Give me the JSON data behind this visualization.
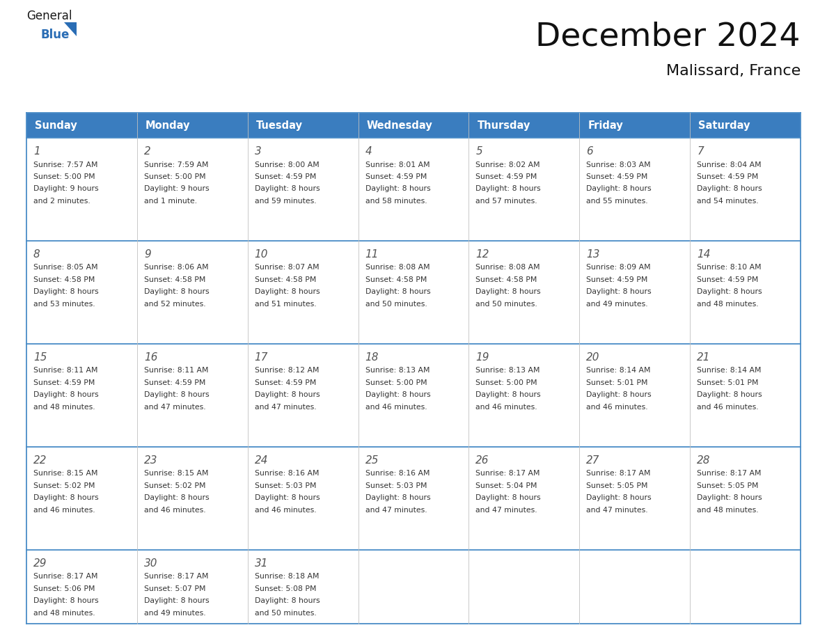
{
  "title": "December 2024",
  "subtitle": "Malissard, France",
  "header_bg_color": "#3a7dbf",
  "header_text_color": "#ffffff",
  "header_font_size": 10.5,
  "day_names": [
    "Sunday",
    "Monday",
    "Tuesday",
    "Wednesday",
    "Thursday",
    "Friday",
    "Saturday"
  ],
  "title_font_size": 34,
  "subtitle_font_size": 16,
  "grid_line_color": "#4a8cc7",
  "text_color": "#333333",
  "day_number_color": "#555555",
  "logo_general_color": "#1a1a1a",
  "logo_blue_color": "#2a6db5",
  "days_data": [
    {
      "day": 1,
      "col": 0,
      "row": 0,
      "sunrise": "7:57 AM",
      "sunset": "5:00 PM",
      "daylight_h": "9 hours",
      "daylight_m": "and 2 minutes."
    },
    {
      "day": 2,
      "col": 1,
      "row": 0,
      "sunrise": "7:59 AM",
      "sunset": "5:00 PM",
      "daylight_h": "9 hours",
      "daylight_m": "and 1 minute."
    },
    {
      "day": 3,
      "col": 2,
      "row": 0,
      "sunrise": "8:00 AM",
      "sunset": "4:59 PM",
      "daylight_h": "8 hours",
      "daylight_m": "and 59 minutes."
    },
    {
      "day": 4,
      "col": 3,
      "row": 0,
      "sunrise": "8:01 AM",
      "sunset": "4:59 PM",
      "daylight_h": "8 hours",
      "daylight_m": "and 58 minutes."
    },
    {
      "day": 5,
      "col": 4,
      "row": 0,
      "sunrise": "8:02 AM",
      "sunset": "4:59 PM",
      "daylight_h": "8 hours",
      "daylight_m": "and 57 minutes."
    },
    {
      "day": 6,
      "col": 5,
      "row": 0,
      "sunrise": "8:03 AM",
      "sunset": "4:59 PM",
      "daylight_h": "8 hours",
      "daylight_m": "and 55 minutes."
    },
    {
      "day": 7,
      "col": 6,
      "row": 0,
      "sunrise": "8:04 AM",
      "sunset": "4:59 PM",
      "daylight_h": "8 hours",
      "daylight_m": "and 54 minutes."
    },
    {
      "day": 8,
      "col": 0,
      "row": 1,
      "sunrise": "8:05 AM",
      "sunset": "4:58 PM",
      "daylight_h": "8 hours",
      "daylight_m": "and 53 minutes."
    },
    {
      "day": 9,
      "col": 1,
      "row": 1,
      "sunrise": "8:06 AM",
      "sunset": "4:58 PM",
      "daylight_h": "8 hours",
      "daylight_m": "and 52 minutes."
    },
    {
      "day": 10,
      "col": 2,
      "row": 1,
      "sunrise": "8:07 AM",
      "sunset": "4:58 PM",
      "daylight_h": "8 hours",
      "daylight_m": "and 51 minutes."
    },
    {
      "day": 11,
      "col": 3,
      "row": 1,
      "sunrise": "8:08 AM",
      "sunset": "4:58 PM",
      "daylight_h": "8 hours",
      "daylight_m": "and 50 minutes."
    },
    {
      "day": 12,
      "col": 4,
      "row": 1,
      "sunrise": "8:08 AM",
      "sunset": "4:58 PM",
      "daylight_h": "8 hours",
      "daylight_m": "and 50 minutes."
    },
    {
      "day": 13,
      "col": 5,
      "row": 1,
      "sunrise": "8:09 AM",
      "sunset": "4:59 PM",
      "daylight_h": "8 hours",
      "daylight_m": "and 49 minutes."
    },
    {
      "day": 14,
      "col": 6,
      "row": 1,
      "sunrise": "8:10 AM",
      "sunset": "4:59 PM",
      "daylight_h": "8 hours",
      "daylight_m": "and 48 minutes."
    },
    {
      "day": 15,
      "col": 0,
      "row": 2,
      "sunrise": "8:11 AM",
      "sunset": "4:59 PM",
      "daylight_h": "8 hours",
      "daylight_m": "and 48 minutes."
    },
    {
      "day": 16,
      "col": 1,
      "row": 2,
      "sunrise": "8:11 AM",
      "sunset": "4:59 PM",
      "daylight_h": "8 hours",
      "daylight_m": "and 47 minutes."
    },
    {
      "day": 17,
      "col": 2,
      "row": 2,
      "sunrise": "8:12 AM",
      "sunset": "4:59 PM",
      "daylight_h": "8 hours",
      "daylight_m": "and 47 minutes."
    },
    {
      "day": 18,
      "col": 3,
      "row": 2,
      "sunrise": "8:13 AM",
      "sunset": "5:00 PM",
      "daylight_h": "8 hours",
      "daylight_m": "and 46 minutes."
    },
    {
      "day": 19,
      "col": 4,
      "row": 2,
      "sunrise": "8:13 AM",
      "sunset": "5:00 PM",
      "daylight_h": "8 hours",
      "daylight_m": "and 46 minutes."
    },
    {
      "day": 20,
      "col": 5,
      "row": 2,
      "sunrise": "8:14 AM",
      "sunset": "5:01 PM",
      "daylight_h": "8 hours",
      "daylight_m": "and 46 minutes."
    },
    {
      "day": 21,
      "col": 6,
      "row": 2,
      "sunrise": "8:14 AM",
      "sunset": "5:01 PM",
      "daylight_h": "8 hours",
      "daylight_m": "and 46 minutes."
    },
    {
      "day": 22,
      "col": 0,
      "row": 3,
      "sunrise": "8:15 AM",
      "sunset": "5:02 PM",
      "daylight_h": "8 hours",
      "daylight_m": "and 46 minutes."
    },
    {
      "day": 23,
      "col": 1,
      "row": 3,
      "sunrise": "8:15 AM",
      "sunset": "5:02 PM",
      "daylight_h": "8 hours",
      "daylight_m": "and 46 minutes."
    },
    {
      "day": 24,
      "col": 2,
      "row": 3,
      "sunrise": "8:16 AM",
      "sunset": "5:03 PM",
      "daylight_h": "8 hours",
      "daylight_m": "and 46 minutes."
    },
    {
      "day": 25,
      "col": 3,
      "row": 3,
      "sunrise": "8:16 AM",
      "sunset": "5:03 PM",
      "daylight_h": "8 hours",
      "daylight_m": "and 47 minutes."
    },
    {
      "day": 26,
      "col": 4,
      "row": 3,
      "sunrise": "8:17 AM",
      "sunset": "5:04 PM",
      "daylight_h": "8 hours",
      "daylight_m": "and 47 minutes."
    },
    {
      "day": 27,
      "col": 5,
      "row": 3,
      "sunrise": "8:17 AM",
      "sunset": "5:05 PM",
      "daylight_h": "8 hours",
      "daylight_m": "and 47 minutes."
    },
    {
      "day": 28,
      "col": 6,
      "row": 3,
      "sunrise": "8:17 AM",
      "sunset": "5:05 PM",
      "daylight_h": "8 hours",
      "daylight_m": "and 48 minutes."
    },
    {
      "day": 29,
      "col": 0,
      "row": 4,
      "sunrise": "8:17 AM",
      "sunset": "5:06 PM",
      "daylight_h": "8 hours",
      "daylight_m": "and 48 minutes."
    },
    {
      "day": 30,
      "col": 1,
      "row": 4,
      "sunrise": "8:17 AM",
      "sunset": "5:07 PM",
      "daylight_h": "8 hours",
      "daylight_m": "and 49 minutes."
    },
    {
      "day": 31,
      "col": 2,
      "row": 4,
      "sunrise": "8:18 AM",
      "sunset": "5:08 PM",
      "daylight_h": "8 hours",
      "daylight_m": "and 50 minutes."
    }
  ]
}
